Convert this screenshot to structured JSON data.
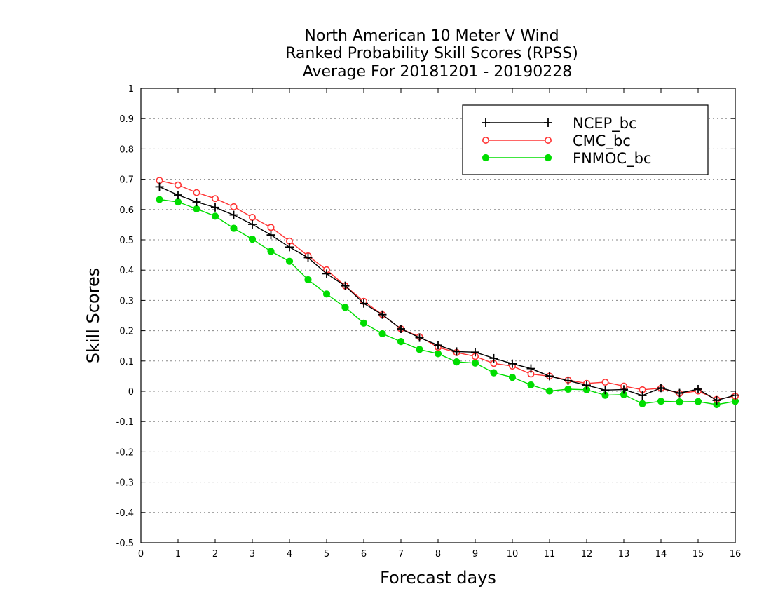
{
  "chart_data": {
    "type": "line",
    "title_lines": [
      "North American 10 Meter V Wind",
      "Ranked Probability Skill Scores (RPSS)",
      "Average For 20181201 - 20190228"
    ],
    "xlabel": "Forecast days",
    "ylabel": "Skill Scores",
    "xlim": [
      0,
      16
    ],
    "ylim": [
      -0.5,
      1
    ],
    "x_ticks": [
      0,
      1,
      2,
      3,
      4,
      5,
      6,
      7,
      8,
      9,
      10,
      11,
      12,
      13,
      14,
      15,
      16
    ],
    "y_ticks": [
      -0.5,
      -0.4,
      -0.3,
      -0.2,
      -0.1,
      0,
      0.1,
      0.2,
      0.3,
      0.4,
      0.5,
      0.6,
      0.7,
      0.8,
      0.9,
      1
    ],
    "y_tick_labels": [
      "-0.5",
      "-0.4",
      "-0.3",
      "-0.2",
      "-0.1",
      "0",
      "0.1",
      "0.2",
      "0.3",
      "0.4",
      "0.5",
      "0.6",
      "0.7",
      "0.8",
      "0.9",
      "1"
    ],
    "grid": true,
    "legend_position": "top-right",
    "x": [
      0.5,
      1,
      1.5,
      2,
      2.5,
      3,
      3.5,
      4,
      4.5,
      5,
      5.5,
      6,
      6.5,
      7,
      7.5,
      8,
      8.5,
      9,
      9.5,
      10,
      10.5,
      11,
      11.5,
      12,
      12.5,
      13,
      13.5,
      14,
      14.5,
      15,
      15.5,
      16
    ],
    "series": [
      {
        "name": "NCEP_bc",
        "color": "#000000",
        "marker": "plus",
        "values": [
          0.675,
          0.648,
          0.625,
          0.607,
          0.582,
          0.551,
          0.516,
          0.476,
          0.441,
          0.388,
          0.348,
          0.29,
          0.253,
          0.206,
          0.177,
          0.152,
          0.131,
          0.129,
          0.109,
          0.091,
          0.075,
          0.05,
          0.035,
          0.02,
          0.004,
          0.006,
          -0.014,
          0.011,
          -0.006,
          0.007,
          -0.03,
          -0.013
        ]
      },
      {
        "name": "CMC_bc",
        "color": "#ff3333",
        "marker": "open-circle",
        "values": [
          0.696,
          0.681,
          0.656,
          0.636,
          0.609,
          0.574,
          0.541,
          0.496,
          0.447,
          0.401,
          0.348,
          0.297,
          0.253,
          0.206,
          0.18,
          0.145,
          0.128,
          0.115,
          0.092,
          0.083,
          0.057,
          0.05,
          0.037,
          0.026,
          0.03,
          0.017,
          0.005,
          0.01,
          -0.007,
          0.001,
          -0.027,
          -0.016
        ]
      },
      {
        "name": "FNMOC_bc",
        "color": "#00dd00",
        "marker": "filled-circle",
        "values": [
          0.633,
          0.625,
          0.602,
          0.578,
          0.538,
          0.502,
          0.462,
          0.429,
          0.368,
          0.321,
          0.277,
          0.225,
          0.19,
          0.164,
          0.138,
          0.124,
          0.097,
          0.093,
          0.061,
          0.046,
          0.021,
          0.001,
          0.007,
          0.005,
          -0.013,
          -0.011,
          -0.041,
          -0.033,
          -0.035,
          -0.034,
          -0.044,
          -0.033
        ]
      }
    ]
  }
}
